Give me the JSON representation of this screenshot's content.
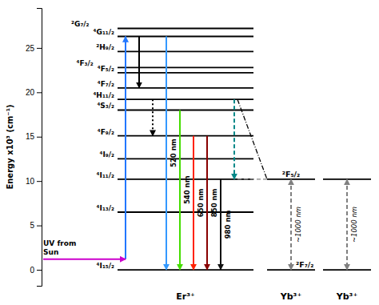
{
  "chart_data": {
    "type": "energy_level",
    "ylabel": "Energy x10³ (cm⁻¹)",
    "ylim": [
      -1.8,
      29.5
    ],
    "yticks": [
      0,
      5,
      10,
      15,
      20,
      25
    ],
    "categories": [
      "Er³⁺",
      "Yb³⁺",
      "Yb³⁺"
    ],
    "levels": [
      [
        0,
        6.5,
        10.2,
        12.5,
        15.1,
        18,
        19.2,
        20.5,
        22.2,
        22.8,
        24.6,
        26.3,
        27.2
      ],
      [
        0,
        10.2
      ],
      [
        0,
        10.2
      ]
    ],
    "level_labels": [
      [
        "⁴I₁₅/₂",
        "⁴I₁₃/₂",
        "⁴I₁₁/₂",
        "⁴I₉/₂",
        "⁴F₉/₂",
        "⁴S₃/₂",
        "⁴H₁₁/₂",
        "⁴F₇/₂",
        "⁴F₅/₂",
        "⁴F₃/₂",
        "²H₉/₂",
        "⁴G₁₁/₂",
        "²G₇/₂"
      ],
      [
        "²F₇/₂",
        "²F₅/₂"
      ],
      [
        null,
        null
      ]
    ],
    "arrows": [
      [
        {
          "from": 1.2,
          "to": 26.3,
          "color": "#2277FF",
          "line_style": "solid"
        },
        {
          "from": 26.3,
          "to": 20.5,
          "color": "black",
          "line_style": "solid"
        },
        {
          "from": 19.2,
          "to": 15.1,
          "color": "black",
          "line_style": "dotted"
        },
        {
          "from": 26.3,
          "to": 0,
          "color": "#3399FF",
          "line_style": "solid",
          "label": "520 nm"
        },
        {
          "from": 18,
          "to": 0,
          "color": "#44DD00",
          "line_style": "solid",
          "label": "540 nm"
        },
        {
          "from": 15.1,
          "to": 0,
          "color": "#FF2200",
          "line_style": "solid",
          "label": "650 nm"
        },
        {
          "from": 15.1,
          "to": 0,
          "color": "#880000",
          "line_style": "solid",
          "label": "850 nm"
        },
        {
          "from": 10.2,
          "to": 0,
          "color": "#111111",
          "line_style": "solid",
          "label": "980 nm"
        },
        {
          "from": 19.2,
          "to": 10.2,
          "color": "#008888",
          "line_style": "dashed"
        }
      ],
      [
        {
          "from": 10.2,
          "to": 0,
          "color": "gray",
          "line_style": "dashed",
          "label": "~1000 nm"
        }
      ],
      [
        {
          "from": 10.2,
          "to": 0,
          "color": "gray",
          "line_style": "dashed",
          "label": "~1000 nm"
        }
      ]
    ],
    "links": [
      {
        "from": 19.2,
        "to": 10.2,
        "color": "black",
        "line_style": "dashdot"
      },
      {
        "from": 10.2,
        "to": 10.2,
        "color": "gray",
        "line_style": "dashed"
      }
    ],
    "uv": {
      "y": 1.2,
      "color": "#CC00CC",
      "label": "UV from\nSun"
    }
  }
}
